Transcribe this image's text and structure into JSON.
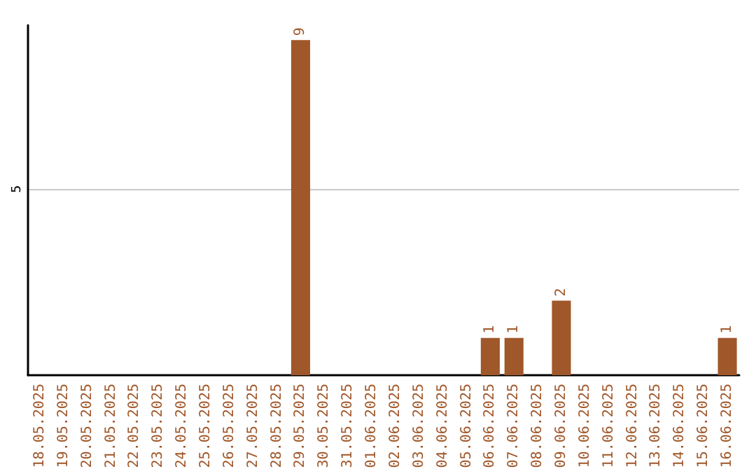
{
  "chart_data": {
    "type": "bar",
    "categories": [
      "18.05.2025",
      "19.05.2025",
      "20.05.2025",
      "21.05.2025",
      "22.05.2025",
      "23.05.2025",
      "24.05.2025",
      "25.05.2025",
      "26.05.2025",
      "27.05.2025",
      "28.05.2025",
      "29.05.2025",
      "30.05.2025",
      "31.05.2025",
      "01.06.2025",
      "02.06.2025",
      "03.06.2025",
      "04.06.2025",
      "05.06.2025",
      "06.06.2025",
      "07.06.2025",
      "08.06.2025",
      "09.06.2025",
      "10.06.2025",
      "11.06.2025",
      "12.06.2025",
      "13.06.2025",
      "14.06.2025",
      "15.06.2025",
      "16.06.2025"
    ],
    "values": [
      0,
      0,
      0,
      0,
      0,
      0,
      0,
      0,
      0,
      0,
      0,
      9,
      0,
      0,
      0,
      0,
      0,
      0,
      0,
      1,
      1,
      0,
      2,
      0,
      0,
      0,
      0,
      0,
      0,
      1
    ],
    "value_labels": [
      null,
      null,
      null,
      null,
      null,
      null,
      null,
      null,
      null,
      null,
      null,
      "9",
      null,
      null,
      null,
      null,
      null,
      null,
      null,
      "1",
      "1",
      null,
      "2",
      null,
      null,
      null,
      null,
      null,
      null,
      "1"
    ],
    "color": "#a0572a",
    "ylim": [
      0,
      9.4
    ],
    "yticks": [
      5
    ],
    "grid": "y"
  }
}
